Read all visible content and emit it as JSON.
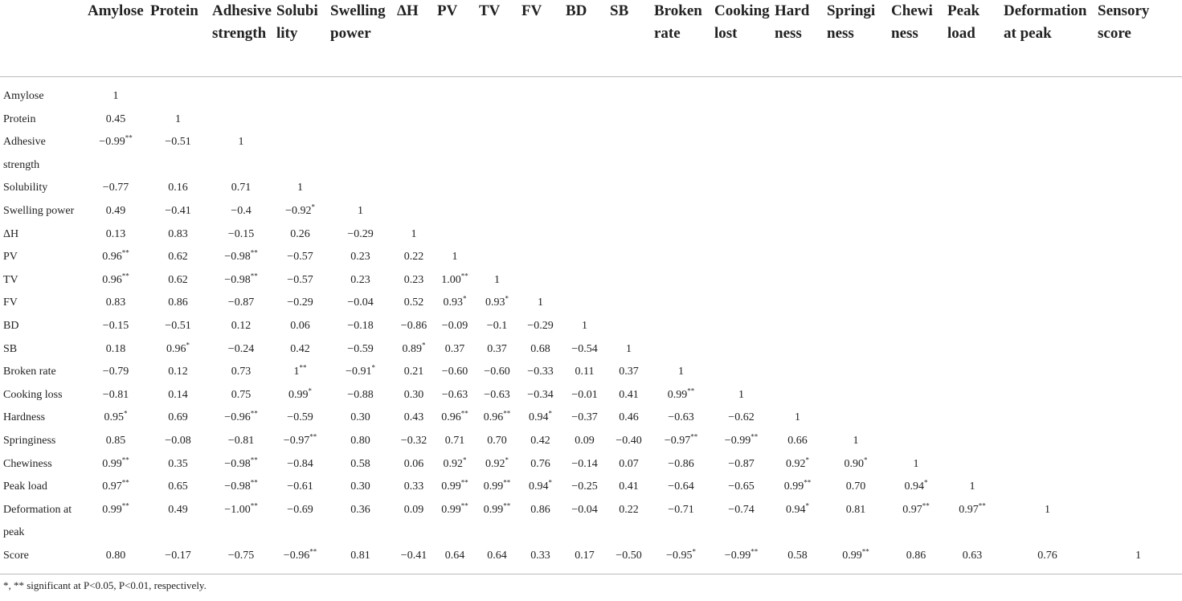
{
  "table": {
    "columns": [
      "Amylose",
      "Protein",
      "Adhesive\nstrength",
      "Solubi\nlity",
      "Swelling\npower",
      "ΔH",
      "PV",
      "TV",
      "FV",
      "BD",
      "SB",
      "Broken\nrate",
      "Cooking\nlost",
      "Hard\nness",
      "Springi\nness",
      "Chewi\nness",
      "Peak\nload",
      "Deformation\nat peak",
      "Sensory\nscore"
    ],
    "rows": [
      [
        "Amylose",
        "1"
      ],
      [
        "Protein",
        "0.45",
        "1"
      ],
      [
        "Adhesive strength",
        "−0.99**",
        "−0.51",
        "1"
      ],
      [
        "Solubility",
        "−0.77",
        "0.16",
        "0.71",
        "1"
      ],
      [
        "Swelling power",
        "0.49",
        "−0.41",
        "−0.4",
        "−0.92*",
        "1"
      ],
      [
        "ΔH",
        "0.13",
        "0.83",
        "−0.15",
        "0.26",
        "−0.29",
        "1"
      ],
      [
        "PV",
        "0.96**",
        "0.62",
        "−0.98**",
        "−0.57",
        "0.23",
        "0.22",
        "1"
      ],
      [
        "TV",
        "0.96**",
        "0.62",
        "−0.98**",
        "−0.57",
        "0.23",
        "0.23",
        "1.00**",
        "1"
      ],
      [
        "FV",
        "0.83",
        "0.86",
        "−0.87",
        "−0.29",
        "−0.04",
        "0.52",
        "0.93*",
        "0.93*",
        "1"
      ],
      [
        "BD",
        "−0.15",
        "−0.51",
        "0.12",
        "0.06",
        "−0.18",
        "−0.86",
        "−0.09",
        "−0.1",
        "−0.29",
        "1"
      ],
      [
        "SB",
        "0.18",
        "0.96*",
        "−0.24",
        "0.42",
        "−0.59",
        "0.89*",
        "0.37",
        "0.37",
        "0.68",
        "−0.54",
        "1"
      ],
      [
        "Broken rate",
        "−0.79",
        "0.12",
        "0.73",
        "1**",
        "−0.91*",
        "0.21",
        "−0.60",
        "−0.60",
        "−0.33",
        "0.11",
        "0.37",
        "1"
      ],
      [
        "Cooking loss",
        "−0.81",
        "0.14",
        "0.75",
        "0.99*",
        "−0.88",
        "0.30",
        "−0.63",
        "−0.63",
        "−0.34",
        "−0.01",
        "0.41",
        "0.99**",
        "1"
      ],
      [
        "Hardness",
        "0.95*",
        "0.69",
        "−0.96**",
        "−0.59",
        "0.30",
        "0.43",
        "0.96**",
        "0.96**",
        "0.94*",
        "−0.37",
        "0.46",
        "−0.63",
        "−0.62",
        "1"
      ],
      [
        "Springiness",
        "0.85",
        "−0.08",
        "−0.81",
        "−0.97**",
        "0.80",
        "−0.32",
        "0.71",
        "0.70",
        "0.42",
        "0.09",
        "−0.40",
        "−0.97**",
        "−0.99**",
        "0.66",
        "1"
      ],
      [
        "Chewiness",
        "0.99**",
        "0.35",
        "−0.98**",
        "−0.84",
        "0.58",
        "0.06",
        "0.92*",
        "0.92*",
        "0.76",
        "−0.14",
        "0.07",
        "−0.86",
        "−0.87",
        "0.92*",
        "0.90*",
        "1"
      ],
      [
        "Peak load",
        "0.97**",
        "0.65",
        "−0.98**",
        "−0.61",
        "0.30",
        "0.33",
        "0.99**",
        "0.99**",
        "0.94*",
        "−0.25",
        "0.41",
        "−0.64",
        "−0.65",
        "0.99**",
        "0.70",
        "0.94*",
        "1"
      ],
      [
        "Deformation at peak",
        "0.99**",
        "0.49",
        "−1.00**",
        "−0.69",
        "0.36",
        "0.09",
        "0.99**",
        "0.99**",
        "0.86",
        "−0.04",
        "0.22",
        "−0.71",
        "−0.74",
        "0.94*",
        "0.81",
        "0.97**",
        "0.97**",
        "1"
      ],
      [
        "Score",
        "0.80",
        "−0.17",
        "−0.75",
        "−0.96**",
        "0.81",
        "−0.41",
        "0.64",
        "0.64",
        "0.33",
        "0.17",
        "−0.50",
        "−0.95*",
        "−0.99**",
        "0.58",
        "0.99**",
        "0.86",
        "0.63",
        "0.76",
        "1"
      ]
    ],
    "footnote": "*, ** significant at P<0.05, P<0.01, respectively."
  }
}
